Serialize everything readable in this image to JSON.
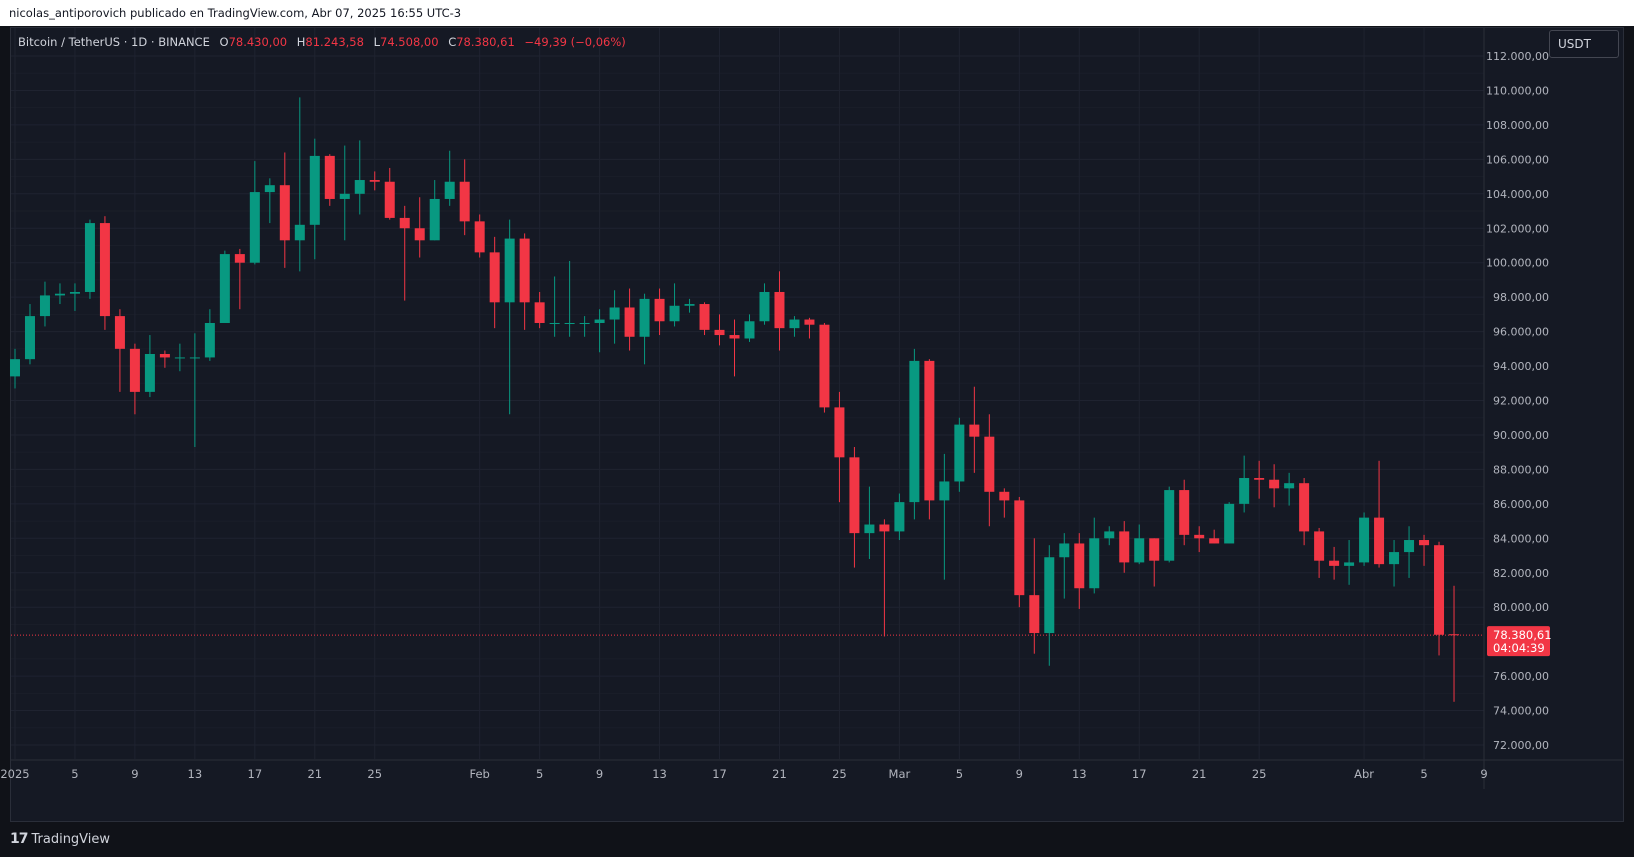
{
  "publisher_bar": {
    "text": "nicolas_antiporovich publicado en TradingView.com, Abr 07, 2025 16:55 UTC-3"
  },
  "legend": {
    "symbol": "Bitcoin / TetherUS · 1D · BINANCE",
    "open_label": "O",
    "open_value": "78.430,00",
    "high_label": "H",
    "high_value": "81.243,58",
    "low_label": "L",
    "low_value": "74.508,00",
    "close_label": "C",
    "close_value": "78.380,61",
    "change": "−49,39 (−0,06%)"
  },
  "currency_button": "USDT",
  "brand": {
    "logo": "17",
    "name": "TradingView"
  },
  "colors": {
    "up": "#089981",
    "down": "#f23645",
    "grid": "#1f2330",
    "price_line": "#f23645"
  },
  "current_price": {
    "label": "78.380,61",
    "countdown": "04:04:39",
    "value": 78380.61
  },
  "chart_data": {
    "type": "candlestick",
    "title": "",
    "ylim": [
      71000,
      112500
    ],
    "y_ticks": [
      {
        "value": 112000,
        "label": "112.000,00"
      },
      {
        "value": 110000,
        "label": "110.000,00"
      },
      {
        "value": 108000,
        "label": "108.000,00"
      },
      {
        "value": 106000,
        "label": "106.000,00"
      },
      {
        "value": 104000,
        "label": "104.000,00"
      },
      {
        "value": 102000,
        "label": "102.000,00"
      },
      {
        "value": 100000,
        "label": "100.000,00"
      },
      {
        "value": 98000,
        "label": "98.000,00"
      },
      {
        "value": 96000,
        "label": "96.000,00"
      },
      {
        "value": 94000,
        "label": "94.000,00"
      },
      {
        "value": 92000,
        "label": "92.000,00"
      },
      {
        "value": 90000,
        "label": "90.000,00"
      },
      {
        "value": 88000,
        "label": "88.000,00"
      },
      {
        "value": 86000,
        "label": "86.000,00"
      },
      {
        "value": 84000,
        "label": "84.000,00"
      },
      {
        "value": 82000,
        "label": "82.000,00"
      },
      {
        "value": 80000,
        "label": "80.000,00"
      },
      {
        "value": 76000,
        "label": "76.000,00"
      },
      {
        "value": 74000,
        "label": "74.000,00"
      },
      {
        "value": 72000,
        "label": "72.000,00"
      }
    ],
    "x_ticks": [
      {
        "date": "2025-01-01",
        "label": "2025"
      },
      {
        "date": "2025-01-05",
        "label": "5"
      },
      {
        "date": "2025-01-09",
        "label": "9"
      },
      {
        "date": "2025-01-13",
        "label": "13"
      },
      {
        "date": "2025-01-17",
        "label": "17"
      },
      {
        "date": "2025-01-21",
        "label": "21"
      },
      {
        "date": "2025-01-25",
        "label": "25"
      },
      {
        "date": "2025-02-01",
        "label": "Feb"
      },
      {
        "date": "2025-02-05",
        "label": "5"
      },
      {
        "date": "2025-02-09",
        "label": "9"
      },
      {
        "date": "2025-02-13",
        "label": "13"
      },
      {
        "date": "2025-02-17",
        "label": "17"
      },
      {
        "date": "2025-02-21",
        "label": "21"
      },
      {
        "date": "2025-02-25",
        "label": "25"
      },
      {
        "date": "2025-03-01",
        "label": "Mar"
      },
      {
        "date": "2025-03-05",
        "label": "5"
      },
      {
        "date": "2025-03-09",
        "label": "9"
      },
      {
        "date": "2025-03-13",
        "label": "13"
      },
      {
        "date": "2025-03-17",
        "label": "17"
      },
      {
        "date": "2025-03-21",
        "label": "21"
      },
      {
        "date": "2025-03-25",
        "label": "25"
      },
      {
        "date": "2025-04-01",
        "label": "Abr"
      },
      {
        "date": "2025-04-05",
        "label": "5"
      },
      {
        "date": "2025-04-09",
        "label": "9"
      }
    ],
    "first_date": "2025-01-01",
    "date_range": [
      "2024-12-31",
      "2025-04-09"
    ],
    "candles": [
      {
        "date": "2025-01-01",
        "o": 93400,
        "h": 95000,
        "l": 92700,
        "c": 94400
      },
      {
        "date": "2025-01-02",
        "o": 94400,
        "h": 97600,
        "l": 94100,
        "c": 96900
      },
      {
        "date": "2025-01-03",
        "o": 96900,
        "h": 98900,
        "l": 96300,
        "c": 98100
      },
      {
        "date": "2025-01-04",
        "o": 98100,
        "h": 98800,
        "l": 97600,
        "c": 98200
      },
      {
        "date": "2025-01-05",
        "o": 98200,
        "h": 98800,
        "l": 97200,
        "c": 98300
      },
      {
        "date": "2025-01-06",
        "o": 98300,
        "h": 102500,
        "l": 97900,
        "c": 102300
      },
      {
        "date": "2025-01-07",
        "o": 102300,
        "h": 102700,
        "l": 96100,
        "c": 96900
      },
      {
        "date": "2025-01-08",
        "o": 96900,
        "h": 97300,
        "l": 92500,
        "c": 95000
      },
      {
        "date": "2025-01-09",
        "o": 95000,
        "h": 95300,
        "l": 91200,
        "c": 92500
      },
      {
        "date": "2025-01-10",
        "o": 92500,
        "h": 95800,
        "l": 92200,
        "c": 94700
      },
      {
        "date": "2025-01-11",
        "o": 94700,
        "h": 94900,
        "l": 93900,
        "c": 94500
      },
      {
        "date": "2025-01-12",
        "o": 94500,
        "h": 95300,
        "l": 93700,
        "c": 94500
      },
      {
        "date": "2025-01-13",
        "o": 94500,
        "h": 95900,
        "l": 89300,
        "c": 94500
      },
      {
        "date": "2025-01-14",
        "o": 94500,
        "h": 97300,
        "l": 94300,
        "c": 96500
      },
      {
        "date": "2025-01-15",
        "o": 96500,
        "h": 100700,
        "l": 96500,
        "c": 100500
      },
      {
        "date": "2025-01-16",
        "o": 100500,
        "h": 100800,
        "l": 97300,
        "c": 100000
      },
      {
        "date": "2025-01-17",
        "o": 100000,
        "h": 105900,
        "l": 99900,
        "c": 104100
      },
      {
        "date": "2025-01-18",
        "o": 104100,
        "h": 104900,
        "l": 102300,
        "c": 104500
      },
      {
        "date": "2025-01-19",
        "o": 104500,
        "h": 106400,
        "l": 99700,
        "c": 101300
      },
      {
        "date": "2025-01-20",
        "o": 101300,
        "h": 109600,
        "l": 99500,
        "c": 102200
      },
      {
        "date": "2025-01-21",
        "o": 102200,
        "h": 107200,
        "l": 100200,
        "c": 106200
      },
      {
        "date": "2025-01-22",
        "o": 106200,
        "h": 106300,
        "l": 103300,
        "c": 103700
      },
      {
        "date": "2025-01-23",
        "o": 103700,
        "h": 106800,
        "l": 101300,
        "c": 104000
      },
      {
        "date": "2025-01-24",
        "o": 104000,
        "h": 107100,
        "l": 102800,
        "c": 104800
      },
      {
        "date": "2025-01-25",
        "o": 104800,
        "h": 105300,
        "l": 104200,
        "c": 104700
      },
      {
        "date": "2025-01-26",
        "o": 104700,
        "h": 105500,
        "l": 102500,
        "c": 102600
      },
      {
        "date": "2025-01-27",
        "o": 102600,
        "h": 103300,
        "l": 97800,
        "c": 102000
      },
      {
        "date": "2025-01-28",
        "o": 102000,
        "h": 103800,
        "l": 100300,
        "c": 101300
      },
      {
        "date": "2025-01-29",
        "o": 101300,
        "h": 104800,
        "l": 101300,
        "c": 103700
      },
      {
        "date": "2025-01-30",
        "o": 103700,
        "h": 106500,
        "l": 103300,
        "c": 104700
      },
      {
        "date": "2025-01-31",
        "o": 104700,
        "h": 106000,
        "l": 101600,
        "c": 102400
      },
      {
        "date": "2025-02-01",
        "o": 102400,
        "h": 102800,
        "l": 100300,
        "c": 100600
      },
      {
        "date": "2025-02-02",
        "o": 100600,
        "h": 101500,
        "l": 96200,
        "c": 97700
      },
      {
        "date": "2025-02-03",
        "o": 97700,
        "h": 102500,
        "l": 91200,
        "c": 101400
      },
      {
        "date": "2025-02-04",
        "o": 101400,
        "h": 101700,
        "l": 96100,
        "c": 97700
      },
      {
        "date": "2025-02-05",
        "o": 97700,
        "h": 98300,
        "l": 96200,
        "c": 96500
      },
      {
        "date": "2025-02-06",
        "o": 96500,
        "h": 99200,
        "l": 95700,
        "c": 96500
      },
      {
        "date": "2025-02-07",
        "o": 96500,
        "h": 100100,
        "l": 95700,
        "c": 96500
      },
      {
        "date": "2025-02-08",
        "o": 96500,
        "h": 96900,
        "l": 95700,
        "c": 96500
      },
      {
        "date": "2025-02-09",
        "o": 96500,
        "h": 97300,
        "l": 94800,
        "c": 96700
      },
      {
        "date": "2025-02-10",
        "o": 96700,
        "h": 98400,
        "l": 95300,
        "c": 97400
      },
      {
        "date": "2025-02-11",
        "o": 97400,
        "h": 98500,
        "l": 94900,
        "c": 95700
      },
      {
        "date": "2025-02-12",
        "o": 95700,
        "h": 98200,
        "l": 94100,
        "c": 97900
      },
      {
        "date": "2025-02-13",
        "o": 97900,
        "h": 98500,
        "l": 95800,
        "c": 96600
      },
      {
        "date": "2025-02-14",
        "o": 96600,
        "h": 98800,
        "l": 96300,
        "c": 97500
      },
      {
        "date": "2025-02-15",
        "o": 97500,
        "h": 97900,
        "l": 97100,
        "c": 97600
      },
      {
        "date": "2025-02-16",
        "o": 97600,
        "h": 97700,
        "l": 95800,
        "c": 96100
      },
      {
        "date": "2025-02-17",
        "o": 96100,
        "h": 97000,
        "l": 95200,
        "c": 95800
      },
      {
        "date": "2025-02-18",
        "o": 95800,
        "h": 96700,
        "l": 93400,
        "c": 95600
      },
      {
        "date": "2025-02-19",
        "o": 95600,
        "h": 97000,
        "l": 95400,
        "c": 96600
      },
      {
        "date": "2025-02-20",
        "o": 96600,
        "h": 98800,
        "l": 96400,
        "c": 98300
      },
      {
        "date": "2025-02-21",
        "o": 98300,
        "h": 99500,
        "l": 94900,
        "c": 96200
      },
      {
        "date": "2025-02-22",
        "o": 96200,
        "h": 96900,
        "l": 95700,
        "c": 96700
      },
      {
        "date": "2025-02-23",
        "o": 96700,
        "h": 96800,
        "l": 95600,
        "c": 96400
      },
      {
        "date": "2025-02-24",
        "o": 96400,
        "h": 96500,
        "l": 91300,
        "c": 91600
      },
      {
        "date": "2025-02-25",
        "o": 91600,
        "h": 92500,
        "l": 86100,
        "c": 88700
      },
      {
        "date": "2025-02-26",
        "o": 88700,
        "h": 89300,
        "l": 82300,
        "c": 84300
      },
      {
        "date": "2025-02-27",
        "o": 84300,
        "h": 87000,
        "l": 82800,
        "c": 84800
      },
      {
        "date": "2025-02-28",
        "o": 84800,
        "h": 85100,
        "l": 78300,
        "c": 84400
      },
      {
        "date": "2025-03-01",
        "o": 84400,
        "h": 86600,
        "l": 83900,
        "c": 86100
      },
      {
        "date": "2025-03-02",
        "o": 86100,
        "h": 95000,
        "l": 85100,
        "c": 94300
      },
      {
        "date": "2025-03-03",
        "o": 94300,
        "h": 94400,
        "l": 85100,
        "c": 86200
      },
      {
        "date": "2025-03-04",
        "o": 86200,
        "h": 88900,
        "l": 81600,
        "c": 87300
      },
      {
        "date": "2025-03-05",
        "o": 87300,
        "h": 91000,
        "l": 86700,
        "c": 90600
      },
      {
        "date": "2025-03-06",
        "o": 90600,
        "h": 92800,
        "l": 87800,
        "c": 89900
      },
      {
        "date": "2025-03-07",
        "o": 89900,
        "h": 91200,
        "l": 84700,
        "c": 86700
      },
      {
        "date": "2025-03-08",
        "o": 86700,
        "h": 86900,
        "l": 85200,
        "c": 86200
      },
      {
        "date": "2025-03-09",
        "o": 86200,
        "h": 86400,
        "l": 80000,
        "c": 80700
      },
      {
        "date": "2025-03-10",
        "o": 80700,
        "h": 84000,
        "l": 77300,
        "c": 78500
      },
      {
        "date": "2025-03-11",
        "o": 78500,
        "h": 83600,
        "l": 76600,
        "c": 82900
      },
      {
        "date": "2025-03-12",
        "o": 82900,
        "h": 84300,
        "l": 80500,
        "c": 83700
      },
      {
        "date": "2025-03-13",
        "o": 83700,
        "h": 84300,
        "l": 79900,
        "c": 81100
      },
      {
        "date": "2025-03-14",
        "o": 81100,
        "h": 85200,
        "l": 80800,
        "c": 84000
      },
      {
        "date": "2025-03-15",
        "o": 84000,
        "h": 84700,
        "l": 83600,
        "c": 84400
      },
      {
        "date": "2025-03-16",
        "o": 84400,
        "h": 85000,
        "l": 82000,
        "c": 82600
      },
      {
        "date": "2025-03-17",
        "o": 82600,
        "h": 84800,
        "l": 82500,
        "c": 84000
      },
      {
        "date": "2025-03-18",
        "o": 84000,
        "h": 84000,
        "l": 81200,
        "c": 82700
      },
      {
        "date": "2025-03-19",
        "o": 82700,
        "h": 87000,
        "l": 82600,
        "c": 86800
      },
      {
        "date": "2025-03-20",
        "o": 86800,
        "h": 87400,
        "l": 83600,
        "c": 84200
      },
      {
        "date": "2025-03-21",
        "o": 84200,
        "h": 84700,
        "l": 83200,
        "c": 84000
      },
      {
        "date": "2025-03-22",
        "o": 84000,
        "h": 84500,
        "l": 83700,
        "c": 83700
      },
      {
        "date": "2025-03-23",
        "o": 83700,
        "h": 86100,
        "l": 83700,
        "c": 86000
      },
      {
        "date": "2025-03-24",
        "o": 86000,
        "h": 88800,
        "l": 85500,
        "c": 87500
      },
      {
        "date": "2025-03-25",
        "o": 87500,
        "h": 88500,
        "l": 86300,
        "c": 87400
      },
      {
        "date": "2025-03-26",
        "o": 87400,
        "h": 88300,
        "l": 85800,
        "c": 86900
      },
      {
        "date": "2025-03-27",
        "o": 86900,
        "h": 87800,
        "l": 85900,
        "c": 87200
      },
      {
        "date": "2025-03-28",
        "o": 87200,
        "h": 87500,
        "l": 83600,
        "c": 84400
      },
      {
        "date": "2025-03-29",
        "o": 84400,
        "h": 84600,
        "l": 81700,
        "c": 82700
      },
      {
        "date": "2025-03-30",
        "o": 82700,
        "h": 83500,
        "l": 81600,
        "c": 82400
      },
      {
        "date": "2025-03-31",
        "o": 82400,
        "h": 83900,
        "l": 81300,
        "c": 82600
      },
      {
        "date": "2025-04-01",
        "o": 82600,
        "h": 85500,
        "l": 82400,
        "c": 85200
      },
      {
        "date": "2025-04-02",
        "o": 85200,
        "h": 88500,
        "l": 82300,
        "c": 82500
      },
      {
        "date": "2025-04-03",
        "o": 82500,
        "h": 83900,
        "l": 81200,
        "c": 83200
      },
      {
        "date": "2025-04-04",
        "o": 83200,
        "h": 84700,
        "l": 81700,
        "c": 83900
      },
      {
        "date": "2025-04-05",
        "o": 83900,
        "h": 84200,
        "l": 82400,
        "c": 83600
      },
      {
        "date": "2025-04-06",
        "o": 83600,
        "h": 83800,
        "l": 77200,
        "c": 78400
      },
      {
        "date": "2025-04-07",
        "o": 78430,
        "h": 81243.58,
        "l": 74508,
        "c": 78380.61
      }
    ]
  }
}
